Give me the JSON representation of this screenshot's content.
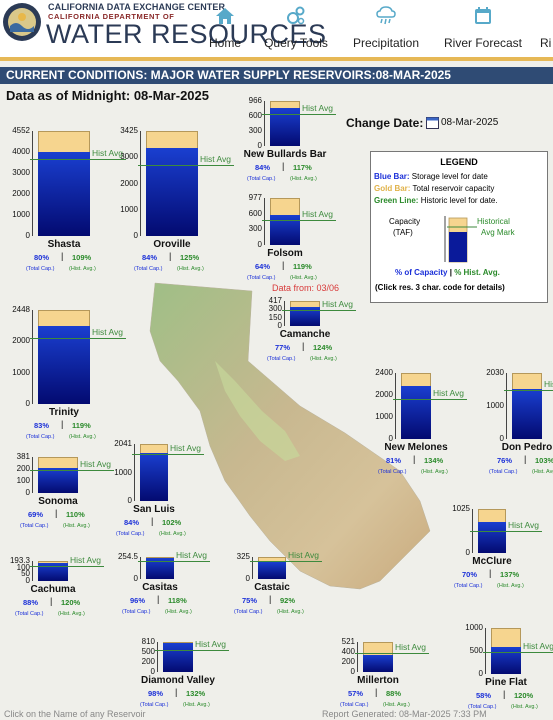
{
  "header": {
    "line1": "CALIFORNIA DATA EXCHANGE CENTER",
    "line2": "CALIFORNIA DEPARTMENT OF",
    "line3": "WATER RESOURCES",
    "nav": [
      {
        "label": "Home",
        "icon": "home-icon"
      },
      {
        "label": "Query Tools",
        "icon": "gears-icon"
      },
      {
        "label": "Precipitation",
        "icon": "rain-cloud-icon"
      },
      {
        "label": "River Forecast",
        "icon": "calendar-icon"
      },
      {
        "label": "Ri",
        "icon": "river-icon"
      }
    ]
  },
  "title_bar": "CURRENT CONDITIONS: MAJOR WATER SUPPLY RESERVOIRS:08-MAR-2025",
  "as_of": "Data as of Midnight: 08-Mar-2025",
  "change_date": {
    "label": "Change Date:",
    "value": "08-Mar-2025"
  },
  "data_from": "Data from: 03/06",
  "legend": {
    "title": "LEGEND",
    "blue_key": "Blue Bar:",
    "blue_text": "Storage level for date",
    "gold_key": "Gold Bar:",
    "gold_text": "Total reservoir capacity",
    "green_key": "Green Line:",
    "green_text": "Historic level for date.",
    "capacity_label_1": "Capacity",
    "capacity_label_2": "(TAF)",
    "hist_label_1": "Historical",
    "hist_label_2": "Avg Mark",
    "pct_capacity": "% of Capacity",
    "pct_hist": "% Hist. Avg.",
    "click_note": "(Click res. 3 char. code for details)"
  },
  "common": {
    "hist_avg": "Hist Avg",
    "total_cap": "(Total Cap.)",
    "hist_avg_paren": "(Hist. Avg.)"
  },
  "reservoirs": [
    {
      "name": "Shasta",
      "capacity": 4552,
      "pct_cap": "80%",
      "pct_hist": "109%",
      "ticks": [
        "4552",
        "4000",
        "3000",
        "2000",
        "1000",
        "0"
      ]
    },
    {
      "name": "Oroville",
      "capacity": 3425,
      "pct_cap": "84%",
      "pct_hist": "125%",
      "ticks": [
        "3425",
        "3000",
        "2000",
        "1000",
        "0"
      ]
    },
    {
      "name": "New Bullards Bar",
      "capacity": 966,
      "pct_cap": "84%",
      "pct_hist": "117%",
      "ticks": [
        "966",
        "600",
        "300",
        "0"
      ]
    },
    {
      "name": "Folsom",
      "capacity": 977,
      "pct_cap": "64%",
      "pct_hist": "119%",
      "ticks": [
        "977",
        "600",
        "300",
        "0"
      ]
    },
    {
      "name": "Camanche",
      "capacity": 417,
      "pct_cap": "77%",
      "pct_hist": "124%",
      "ticks": [
        "417",
        "300",
        "150",
        "0"
      ]
    },
    {
      "name": "Trinity",
      "capacity": 2448,
      "pct_cap": "83%",
      "pct_hist": "119%",
      "ticks": [
        "2448",
        "2000",
        "1000",
        "0"
      ]
    },
    {
      "name": "New Melones",
      "capacity": 2400,
      "pct_cap": "81%",
      "pct_hist": "134%",
      "ticks": [
        "2400",
        "2000",
        "1000",
        "0"
      ]
    },
    {
      "name": "Don Pedro",
      "capacity": 2030,
      "pct_cap": "76%",
      "pct_hist": "103%",
      "ticks": [
        "2030",
        "1000",
        "0"
      ]
    },
    {
      "name": "Sonoma",
      "capacity": 381,
      "pct_cap": "69%",
      "pct_hist": "110%",
      "ticks": [
        "381",
        "200",
        "100",
        "0"
      ]
    },
    {
      "name": "San Luis",
      "capacity": 2041,
      "pct_cap": "84%",
      "pct_hist": "102%",
      "ticks": [
        "2041",
        "1000",
        "0"
      ]
    },
    {
      "name": "McClure",
      "capacity": 1025,
      "pct_cap": "70%",
      "pct_hist": "137%",
      "ticks": [
        "1025",
        "0"
      ]
    },
    {
      "name": "Cachuma",
      "capacity": 193.3,
      "pct_cap": "88%",
      "pct_hist": "120%",
      "ticks": [
        "193.3",
        "100",
        "50",
        "0"
      ]
    },
    {
      "name": "Casitas",
      "capacity": 254.5,
      "pct_cap": "96%",
      "pct_hist": "118%",
      "ticks": [
        "254.5",
        "0"
      ]
    },
    {
      "name": "Castaic",
      "capacity": 325,
      "pct_cap": "75%",
      "pct_hist": "92%",
      "ticks": [
        "325",
        "0"
      ]
    },
    {
      "name": "Diamond Valley",
      "capacity": 810,
      "pct_cap": "98%",
      "pct_hist": "132%",
      "ticks": [
        "810",
        "500",
        "200",
        "0"
      ]
    },
    {
      "name": "Millerton",
      "capacity": 521,
      "pct_cap": "57%",
      "pct_hist": "88%",
      "ticks": [
        "521",
        "400",
        "200",
        "0"
      ]
    },
    {
      "name": "Pine Flat",
      "capacity": 1000,
      "pct_cap": "58%",
      "pct_hist": "120%",
      "ticks": [
        "1000",
        "500",
        "0"
      ]
    }
  ],
  "footer": {
    "left": "Click on the Name of any Reservoir",
    "right": "Report Generated: 08-Mar-2025 7:33 PM"
  },
  "colors": {
    "title_bar": "#2f4b74",
    "gold": "#f6d58f",
    "storage": "#0a1a9a",
    "hist_line": "#3d8a3d",
    "accent": "#e6b856"
  }
}
